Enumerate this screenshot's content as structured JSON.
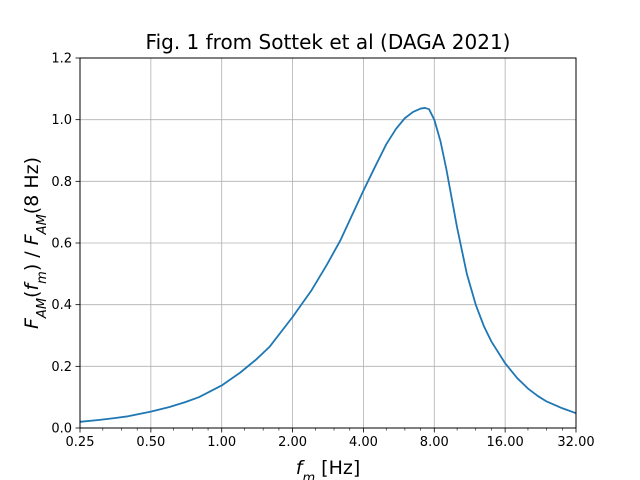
{
  "chart_data": {
    "type": "line",
    "title": "Fig. 1 from Sottek et al (DAGA 2021)",
    "xlabel": {
      "parts": [
        {
          "text": "f",
          "style": "italic",
          "baseline": "normal"
        },
        {
          "text": "m",
          "style": "italic",
          "baseline": "sub"
        },
        {
          "text": " [Hz]",
          "style": "normal",
          "baseline": "normal"
        }
      ]
    },
    "ylabel": {
      "parts": [
        {
          "text": "F",
          "style": "italic",
          "baseline": "normal"
        },
        {
          "text": "AM",
          "style": "italic",
          "baseline": "sub"
        },
        {
          "text": "(",
          "style": "normal",
          "baseline": "normal"
        },
        {
          "text": "f",
          "style": "italic",
          "baseline": "normal"
        },
        {
          "text": "m",
          "style": "italic",
          "baseline": "sub"
        },
        {
          "text": ") / ",
          "style": "normal",
          "baseline": "normal"
        },
        {
          "text": "F",
          "style": "italic",
          "baseline": "normal"
        },
        {
          "text": "AM",
          "style": "italic",
          "baseline": "sub"
        },
        {
          "text": "(8 Hz)",
          "style": "normal",
          "baseline": "normal"
        }
      ]
    },
    "xscale": "log2",
    "xlim": [
      0.25,
      32
    ],
    "ylim": [
      0,
      1.2
    ],
    "xticks": [
      0.25,
      0.5,
      1,
      2,
      4,
      8,
      16,
      32
    ],
    "xtick_labels": [
      "0.25",
      "0.50",
      "1.00",
      "2.00",
      "4.00",
      "8.00",
      "16.00",
      "32.00"
    ],
    "yticks": [
      0,
      0.2,
      0.4,
      0.6,
      0.8,
      1.0,
      1.2
    ],
    "ytick_labels": [
      "0.0",
      "0.2",
      "0.4",
      "0.6",
      "0.8",
      "1.0",
      "1.2"
    ],
    "grid": true,
    "legend": "none",
    "series": [
      {
        "color": "#1f77b4",
        "x": [
          0.25,
          0.3,
          0.35,
          0.4,
          0.5,
          0.6,
          0.7,
          0.8,
          1.0,
          1.2,
          1.4,
          1.6,
          2.0,
          2.4,
          2.8,
          3.2,
          4.0,
          4.5,
          5.0,
          5.5,
          6.0,
          6.5,
          7.0,
          7.3,
          7.6,
          8.0,
          8.5,
          9.0,
          10.0,
          11.0,
          12.0,
          13.0,
          14.0,
          16.0,
          18.0,
          20.0,
          22.0,
          24.0,
          28.0,
          32.0
        ],
        "y": [
          0.02,
          0.026,
          0.032,
          0.038,
          0.053,
          0.068,
          0.084,
          0.1,
          0.138,
          0.18,
          0.222,
          0.264,
          0.36,
          0.445,
          0.53,
          0.61,
          0.77,
          0.85,
          0.92,
          0.97,
          1.005,
          1.025,
          1.036,
          1.038,
          1.034,
          1.0,
          0.93,
          0.84,
          0.65,
          0.5,
          0.4,
          0.33,
          0.28,
          0.21,
          0.162,
          0.128,
          0.104,
          0.086,
          0.064,
          0.048
        ]
      }
    ]
  }
}
